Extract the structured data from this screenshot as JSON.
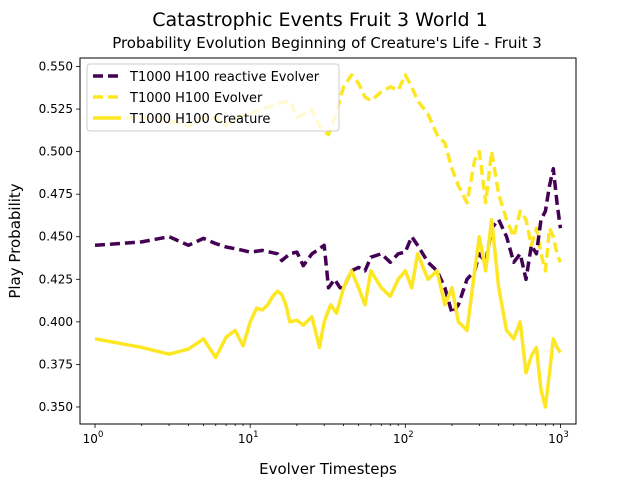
{
  "chart_data": {
    "type": "line",
    "title": "Catastrophic Events Fruit 3 World 1",
    "subtitle": "Probability Evolution Beginning of Creature's Life - Fruit 3",
    "xlabel": "Evolver Timesteps",
    "ylabel": "Play Probability",
    "xscale": "log",
    "xlim": [
      0.8,
      1260
    ],
    "ylim": [
      0.34,
      0.555
    ],
    "x_ticks": [
      {
        "value": 1,
        "base": "10",
        "exp": "0"
      },
      {
        "value": 10,
        "base": "10",
        "exp": "1"
      },
      {
        "value": 100,
        "base": "10",
        "exp": "2"
      },
      {
        "value": 1000,
        "base": "10",
        "exp": "3"
      }
    ],
    "y_ticks": [
      {
        "value": 0.35,
        "label": "0.350"
      },
      {
        "value": 0.375,
        "label": "0.375"
      },
      {
        "value": 0.4,
        "label": "0.400"
      },
      {
        "value": 0.425,
        "label": "0.425"
      },
      {
        "value": 0.45,
        "label": "0.450"
      },
      {
        "value": 0.475,
        "label": "0.475"
      },
      {
        "value": 0.5,
        "label": "0.500"
      },
      {
        "value": 0.525,
        "label": "0.525"
      },
      {
        "value": 0.55,
        "label": "0.550"
      }
    ],
    "grid": false,
    "legend_position": "top-left",
    "series": [
      {
        "name": "T1000 H100 reactive Evolver",
        "color": "#440154",
        "style": "dashed",
        "x": [
          1,
          2,
          3,
          4,
          5,
          6,
          7,
          8,
          9,
          10,
          12,
          15,
          16,
          18,
          20,
          22,
          25,
          27,
          30,
          32,
          35,
          38,
          40,
          45,
          50,
          55,
          60,
          70,
          80,
          90,
          100,
          110,
          120,
          140,
          160,
          180,
          200,
          220,
          250,
          280,
          300,
          330,
          360,
          400,
          450,
          500,
          550,
          600,
          650,
          700,
          750,
          800,
          850,
          900,
          950,
          1000
        ],
        "y": [
          0.445,
          0.447,
          0.45,
          0.445,
          0.449,
          0.446,
          0.444,
          0.443,
          0.442,
          0.441,
          0.442,
          0.44,
          0.436,
          0.44,
          0.441,
          0.433,
          0.44,
          0.442,
          0.445,
          0.42,
          0.425,
          0.42,
          0.42,
          0.43,
          0.432,
          0.43,
          0.438,
          0.44,
          0.435,
          0.44,
          0.441,
          0.45,
          0.445,
          0.435,
          0.43,
          0.42,
          0.405,
          0.41,
          0.425,
          0.43,
          0.44,
          0.435,
          0.455,
          0.46,
          0.45,
          0.435,
          0.44,
          0.425,
          0.445,
          0.44,
          0.46,
          0.465,
          0.48,
          0.49,
          0.47,
          0.455
        ]
      },
      {
        "name": "T1000 H100 Evolver",
        "color": "#fde725",
        "style": "dashed",
        "x": [
          1,
          2,
          3,
          4,
          5,
          6,
          7,
          8,
          10,
          12,
          15,
          18,
          20,
          22,
          25,
          28,
          30,
          32,
          35,
          40,
          45,
          50,
          55,
          60,
          70,
          80,
          90,
          100,
          110,
          120,
          140,
          160,
          180,
          200,
          220,
          250,
          280,
          300,
          330,
          360,
          400,
          450,
          500,
          550,
          600,
          650,
          700,
          750,
          800,
          850,
          900,
          950,
          1000
        ],
        "y": [
          0.52,
          0.52,
          0.518,
          0.515,
          0.52,
          0.52,
          0.515,
          0.52,
          0.522,
          0.525,
          0.528,
          0.53,
          0.52,
          0.522,
          0.525,
          0.515,
          0.512,
          0.51,
          0.52,
          0.538,
          0.545,
          0.54,
          0.532,
          0.53,
          0.535,
          0.538,
          0.536,
          0.545,
          0.538,
          0.53,
          0.522,
          0.51,
          0.505,
          0.49,
          0.48,
          0.47,
          0.495,
          0.5,
          0.47,
          0.5,
          0.475,
          0.46,
          0.45,
          0.465,
          0.46,
          0.445,
          0.455,
          0.44,
          0.43,
          0.455,
          0.45,
          0.44,
          0.435
        ]
      },
      {
        "name": "T1000 H100 Creature",
        "color": "#fde725",
        "style": "solid",
        "x": [
          1,
          2,
          3,
          4,
          5,
          6,
          7,
          8,
          9,
          10,
          11,
          12,
          13,
          14,
          15,
          16,
          17,
          18,
          20,
          22,
          25,
          28,
          30,
          33,
          36,
          40,
          45,
          50,
          55,
          60,
          70,
          80,
          90,
          100,
          110,
          120,
          140,
          160,
          180,
          200,
          220,
          250,
          280,
          300,
          330,
          360,
          400,
          450,
          500,
          550,
          600,
          650,
          700,
          750,
          800,
          850,
          900,
          950,
          1000
        ],
        "y": [
          0.39,
          0.385,
          0.381,
          0.384,
          0.39,
          0.379,
          0.391,
          0.395,
          0.386,
          0.4,
          0.408,
          0.407,
          0.41,
          0.415,
          0.418,
          0.416,
          0.41,
          0.4,
          0.401,
          0.398,
          0.403,
          0.385,
          0.4,
          0.41,
          0.405,
          0.42,
          0.43,
          0.42,
          0.41,
          0.43,
          0.42,
          0.415,
          0.425,
          0.43,
          0.42,
          0.44,
          0.425,
          0.43,
          0.41,
          0.42,
          0.4,
          0.395,
          0.43,
          0.45,
          0.43,
          0.46,
          0.42,
          0.395,
          0.39,
          0.4,
          0.37,
          0.38,
          0.385,
          0.36,
          0.35,
          0.37,
          0.39,
          0.385,
          0.382
        ]
      }
    ]
  }
}
